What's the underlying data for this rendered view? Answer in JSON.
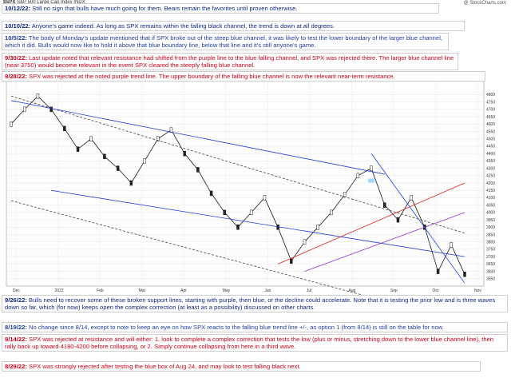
{
  "header": {
    "symbol": "$SPX",
    "name": "S&P 500 Large Cap Index",
    "exchange": "INDX",
    "watermark": "@ StockCharts.com"
  },
  "notes_top": [
    {
      "date": "10/12/22:",
      "text": "Still no sign that bulls have much going for them.  Bears remain the favorites until proven otherwise.",
      "color": "navy"
    },
    {
      "date": "10/10/22:",
      "text": "Anyone's game indeed.  As long as SPX remains within the falling black channel, the trend is down at all degrees.",
      "color": "navy"
    },
    {
      "date": "10/5/22:",
      "text": "The body of Monday's update mentioned that if SPX broke out of the steep blue channel, it was likely to test the lower boundary of the larger blue channel, which it did.  Bulls would now like to hold it above that blue boundary line, below that line and it's still anyone's game.",
      "color": "blue"
    },
    {
      "date": "9/30/22:",
      "text": "Last update noted that relevant resistance had shifted from the purple line to the blue falling channel, and SPX was rejected there.  The larger blue channel line (near 3750) would become relevant in the event SPX cleared the steeply falling blue channel.",
      "color": "red"
    },
    {
      "date": "9/28/22:",
      "text": "SPX was rejected at the noted purple trend line.  The upper boundary of the falling blue channel is now the relevant near-term resistance.",
      "color": "red"
    }
  ],
  "notes_bottom": [
    {
      "date": "9/26/22:",
      "text": "Bulls need to recover some of these broken support lines, starting with purple, then blue, or the decline could accelerate.  Note that it is testing the prior low and is three waves down so far, which (for now) keeps open the complex correction (at least as a possibility) discussed on other charts.",
      "color": "navy"
    },
    {
      "date": "8/19/22:",
      "text": "No change since 8/14, except to note to keep an eye on how SPX reacts to the falling blue trend line +/-, as option 1 (from 8/14) is still on the table for now.",
      "color": "blue"
    },
    {
      "date": "9/14/22:",
      "text": "SPX was rejected at resistance and will either:  1. look to complete a complex correction that tests the low (plus or minus, stretching down to the lower blue channel line), then rally back up toward 4180-4200 before collapsing, or 2. Simply continue collapsing from here in a third wave.",
      "color": "red"
    },
    {
      "date": "8/29/22:",
      "text": "SPX was strongly rejected after testing the blue box of Aug 24, and may look to test falling black next.",
      "color": "red"
    }
  ],
  "chart_data": {
    "type": "candlestick",
    "title": "$SPX S&P 500 Large Cap Index",
    "ylim": [
      3500,
      4900
    ],
    "y_ticks": [
      4800,
      4750,
      4700,
      4650,
      4600,
      4550,
      4500,
      4450,
      4400,
      4350,
      4300,
      4250,
      4200,
      4150,
      4100,
      4050,
      4000,
      3950,
      3900,
      3850,
      3800,
      3750,
      3700,
      3650,
      3600,
      3550
    ],
    "x_ticks": [
      "Dec",
      "2022",
      "Feb",
      "Mar",
      "Apr",
      "May",
      "Jun",
      "Jul",
      "Aug",
      "Sep",
      "Oct",
      "Nov"
    ],
    "series": [
      {
        "name": "SPX daily close (approx)",
        "points": [
          [
            "Dec",
            4600
          ],
          [
            "Dec",
            4700
          ],
          [
            "2022",
            4790
          ],
          [
            "2022",
            4700
          ],
          [
            "2022",
            4570
          ],
          [
            "Feb",
            4430
          ],
          [
            "Feb",
            4500
          ],
          [
            "Feb",
            4380
          ],
          [
            "Mar",
            4300
          ],
          [
            "Mar",
            4200
          ],
          [
            "Mar",
            4350
          ],
          [
            "Mar",
            4500
          ],
          [
            "Apr",
            4560
          ],
          [
            "Apr",
            4400
          ],
          [
            "Apr",
            4290
          ],
          [
            "May",
            4130
          ],
          [
            "May",
            4000
          ],
          [
            "May",
            3900
          ],
          [
            "May",
            4000
          ],
          [
            "Jun",
            4100
          ],
          [
            "Jun",
            3900
          ],
          [
            "Jun",
            3670
          ],
          [
            "Jul",
            3800
          ],
          [
            "Jul",
            3900
          ],
          [
            "Jul",
            4000
          ],
          [
            "Aug",
            4120
          ],
          [
            "Aug",
            4250
          ],
          [
            "Aug",
            4300
          ],
          [
            "Sep",
            4050
          ],
          [
            "Sep",
            3950
          ],
          [
            "Sep",
            4100
          ],
          [
            "Sep",
            3900
          ],
          [
            "Oct",
            3600
          ],
          [
            "Oct",
            3780
          ],
          [
            "Oct",
            3580
          ]
        ]
      }
    ],
    "trendlines": [
      {
        "name": "falling black channel upper",
        "color": "#444444"
      },
      {
        "name": "falling black channel lower",
        "color": "#444444"
      },
      {
        "name": "larger blue channel upper",
        "color": "#1e3fd8"
      },
      {
        "name": "larger blue channel lower",
        "color": "#1e3fd8"
      },
      {
        "name": "purple trend line",
        "color": "#9b30d0"
      },
      {
        "name": "red support line",
        "color": "#e02020"
      },
      {
        "name": "steep blue channel",
        "color": "#1e3fd8"
      }
    ],
    "annotations": [
      "blue box of Aug 24"
    ]
  }
}
